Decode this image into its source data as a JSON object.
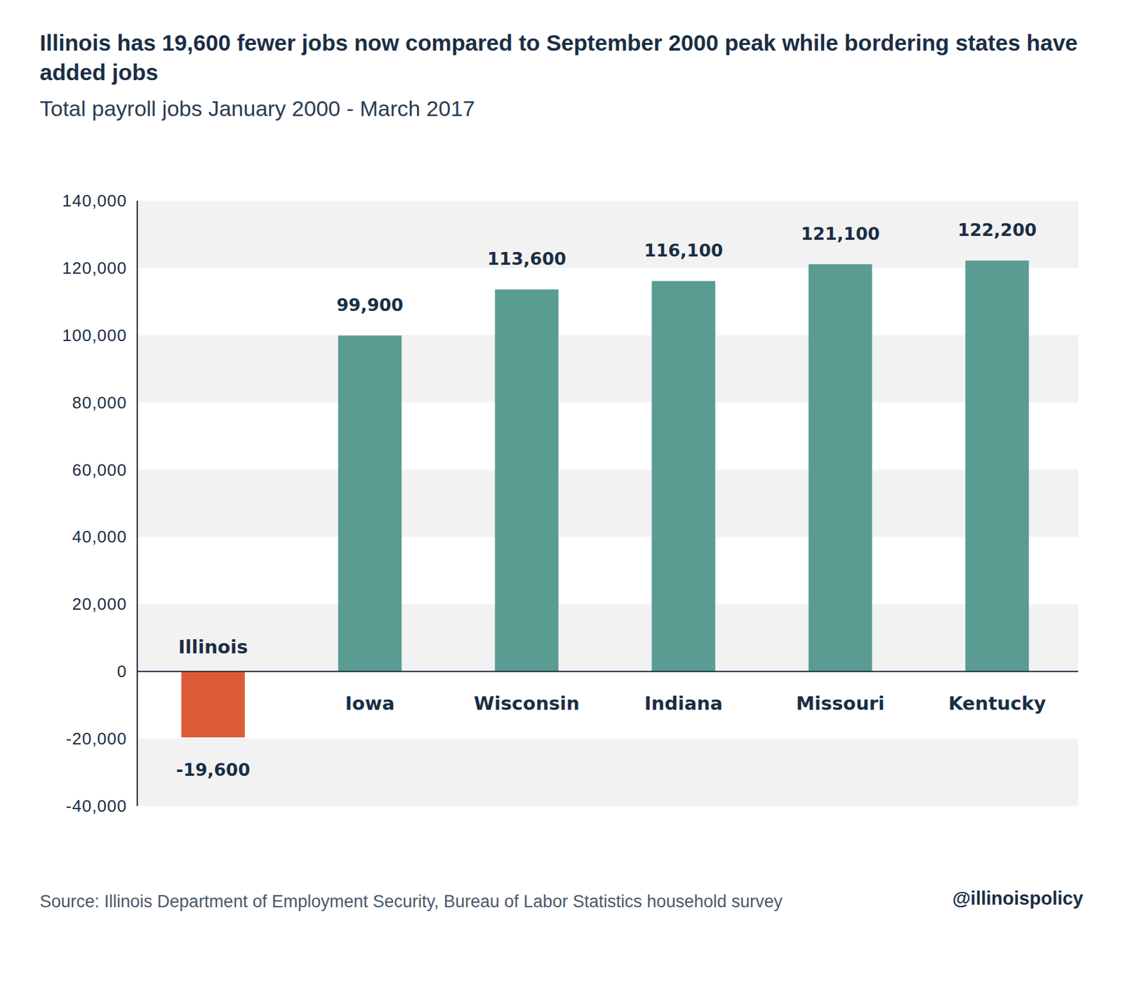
{
  "chart_data": {
    "type": "bar",
    "title": "Illinois has 19,600 fewer jobs now compared to September 2000 peak while bordering states have added jobs",
    "subtitle": "Total payroll jobs January 2000 - March 2017",
    "source": "Source: Illinois Department of Employment Security, Bureau of Labor Statistics household survey",
    "credit": "@illinoispolicy",
    "categories": [
      "Illinois",
      "Iowa",
      "Wisconsin",
      "Indiana",
      "Missouri",
      "Kentucky"
    ],
    "values": [
      -19600,
      99900,
      113600,
      116100,
      121100,
      122200
    ],
    "value_labels": [
      "-19,600",
      "99,900",
      "113,600",
      "116,100",
      "121,100",
      "122,200"
    ],
    "colors": [
      "#dd5c38",
      "#5a9c91",
      "#5a9c91",
      "#5a9c91",
      "#5a9c91",
      "#5a9c91"
    ],
    "ylim": [
      -40000,
      140000
    ],
    "yticks": [
      {
        "value": -40000,
        "label": "-40,000"
      },
      {
        "value": -20000,
        "label": "-20,000"
      },
      0,
      {
        "value": 20000,
        "label": "20,000"
      },
      {
        "value": 40000,
        "label": "40,000"
      },
      {
        "value": 60000,
        "label": "60,000"
      },
      {
        "value": 80000,
        "label": "80,000"
      },
      {
        "value": 100000,
        "label": "100,000"
      },
      {
        "value": 120000,
        "label": "120,000"
      },
      {
        "value": 140000,
        "label": "140,000"
      }
    ],
    "grid": true,
    "data_labels": true
  }
}
